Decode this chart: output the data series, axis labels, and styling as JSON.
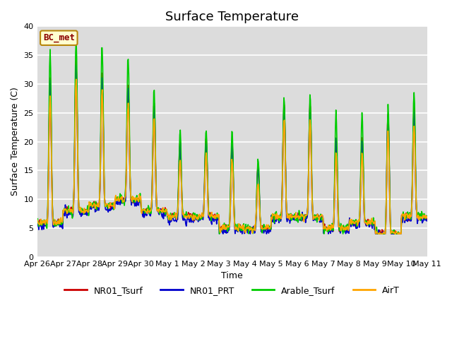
{
  "title": "Surface Temperature",
  "xlabel": "Time",
  "ylabel": "Surface Temperature (C)",
  "ylim": [
    0,
    40
  ],
  "yticks": [
    0,
    5,
    10,
    15,
    20,
    25,
    30,
    35,
    40
  ],
  "annotation_text": "BC_met",
  "annotation_color": "#8B0000",
  "annotation_bg": "#FFFFD0",
  "annotation_edge": "#B8860B",
  "background_color": "#DCDCDC",
  "grid_color": "white",
  "series": {
    "NR01_Tsurf": {
      "color": "#CC0000",
      "lw": 1.2
    },
    "NR01_PRT": {
      "color": "#0000CC",
      "lw": 1.2
    },
    "Arable_Tsurf": {
      "color": "#00CC00",
      "lw": 1.2
    },
    "AirT": {
      "color": "#FFA500",
      "lw": 1.2
    }
  },
  "x_tick_labels": [
    "Apr 26",
    "Apr 27",
    "Apr 28",
    "Apr 29",
    "Apr 30",
    "May 1",
    "May 2",
    "May 3",
    "May 4",
    "May 5",
    "May 6",
    "May 7",
    "May 8",
    "May 9",
    "May 10",
    "May 11"
  ],
  "n_days": 15,
  "pts_per_day": 48,
  "title_fontsize": 13,
  "label_fontsize": 9,
  "tick_fontsize": 8,
  "day_peaks_red": [
    31,
    34,
    32,
    30,
    27,
    20,
    21,
    20,
    16,
    27,
    27,
    21,
    21,
    25,
    26,
    20
  ],
  "day_peaks_green": [
    36,
    38,
    37,
    35,
    29,
    22,
    22,
    22,
    17,
    28,
    28,
    25,
    25,
    26,
    29,
    29
  ],
  "day_troughs": [
    6,
    8,
    9,
    10,
    8,
    7,
    7,
    5,
    5,
    7,
    7,
    5,
    6,
    4,
    7,
    10
  ]
}
